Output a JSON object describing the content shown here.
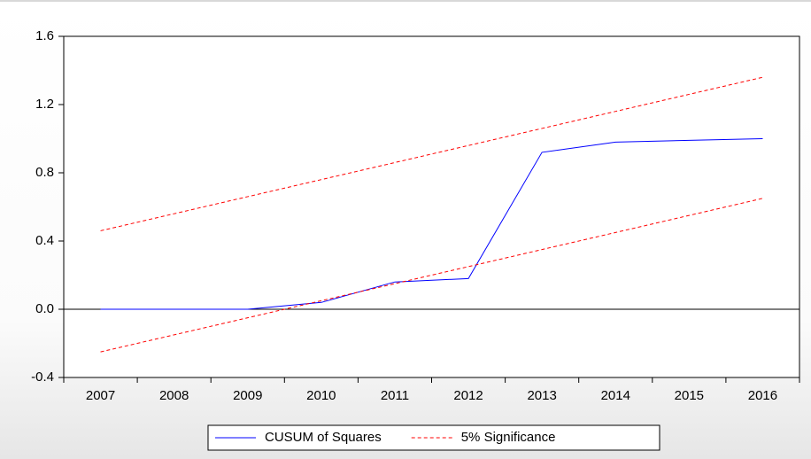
{
  "chart_data": {
    "type": "line",
    "categories": [
      "2007",
      "2008",
      "2009",
      "2010",
      "2011",
      "2012",
      "2013",
      "2014",
      "2015",
      "2016"
    ],
    "series": [
      {
        "name": "CUSUM of Squares",
        "color": "#0000ff",
        "dash": false,
        "values": [
          0.0,
          0.0,
          0.0,
          0.04,
          0.16,
          0.18,
          0.92,
          0.98,
          0.99,
          1.0
        ]
      },
      {
        "name": "5% Significance",
        "color": "#ff0000",
        "dash": true,
        "values": [
          0.46,
          0.56,
          0.66,
          0.76,
          0.86,
          0.96,
          1.06,
          1.16,
          1.26,
          1.36
        ],
        "lower": [
          -0.25,
          -0.15,
          -0.05,
          0.05,
          0.15,
          0.25,
          0.35,
          0.45,
          0.55,
          0.65
        ]
      }
    ],
    "ylim": [
      -0.4,
      1.6
    ],
    "yticks": [
      {
        "value": -0.4,
        "label": "-0.4"
      },
      {
        "value": 0,
        "label": "0.0"
      },
      {
        "value": 0.4,
        "label": "0.4"
      },
      {
        "value": 0.8,
        "label": "0.8"
      },
      {
        "value": 1.2,
        "label": "1.2"
      },
      {
        "value": 1.6,
        "label": "1.6"
      }
    ],
    "zero_line": true,
    "grid": false,
    "legend": "bottom"
  }
}
